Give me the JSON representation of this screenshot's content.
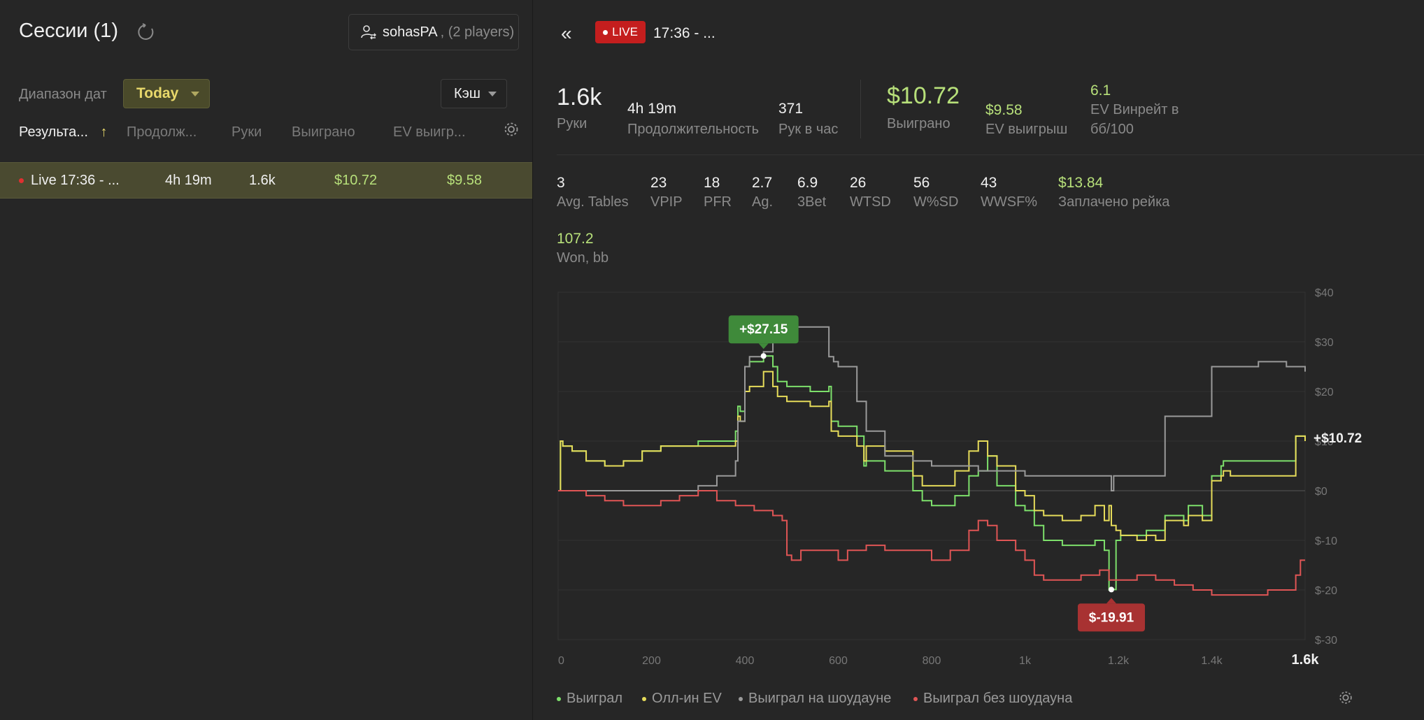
{
  "left": {
    "title": "Сессии (1)",
    "player": "sohasPA",
    "players_count": ", (2 players)",
    "date_label": "Диапазон дат",
    "date_value": "Today",
    "game_type": "Кэш",
    "columns": [
      "Результа...",
      "Продолж...",
      "Руки",
      "Выиграно",
      "EV выигр..."
    ],
    "sort_arrow": "↑",
    "row": {
      "name": "Live 17:36 - ...",
      "duration": "4h 19m",
      "hands": "1.6k",
      "won": "$10.72",
      "ev_won": "$9.58"
    }
  },
  "header": {
    "back": "«",
    "live_label": "LIVE",
    "session_title": "17:36 - ..."
  },
  "stats": {
    "hands_value": "1.6k",
    "hands_label": "Руки",
    "duration_value": "4h 19m",
    "duration_label": "Продолжительность",
    "rate_value": "371",
    "rate_label": "Рук в час",
    "won_value": "$10.72",
    "won_label": "Выиграно",
    "ev_value": "$9.58",
    "ev_label": "EV выигрыш",
    "winrate_value": "6.1",
    "winrate_label_1": "EV Винрейт в",
    "winrate_label_2": "бб/100"
  },
  "stats2": [
    {
      "value": "3",
      "label": "Avg. Tables"
    },
    {
      "value": "23",
      "label": "VPIP"
    },
    {
      "value": "18",
      "label": "PFR"
    },
    {
      "value": "2.7",
      "label": "Ag."
    },
    {
      "value": "6.9",
      "label": "3Bet"
    },
    {
      "value": "26",
      "label": "WTSD"
    },
    {
      "value": "56",
      "label": "W%SD"
    },
    {
      "value": "43",
      "label": "WWSF%"
    },
    {
      "value": "$13.84",
      "label": "Заплачено рейка"
    }
  ],
  "stats3": {
    "value": "107.2",
    "label": "Won, bb"
  },
  "colors": {
    "won": "#7de06b",
    "allin_ev": "#e6dc5a",
    "showdown": "#9a9a9a",
    "non_showdown": "#e05555",
    "accent": "#b7e07a",
    "live": "#c41e1e"
  },
  "chart_data": {
    "type": "line",
    "x_ticks": [
      "0",
      "200",
      "400",
      "600",
      "800",
      "1k",
      "1.2k",
      "1.4k",
      "1.6k"
    ],
    "y_ticks": [
      "$40",
      "$30",
      "$20",
      "$10",
      "$0",
      "$-10",
      "$-20",
      "$-30"
    ],
    "xlim": [
      0,
      1600
    ],
    "ylim": [
      -30,
      40
    ],
    "max_label": "+$27.15",
    "min_label": "$-19.91",
    "end_label": "+$10.72",
    "series": [
      {
        "name": "Выиграл",
        "color": "#7de06b",
        "x": [
          0,
          5,
          10,
          30,
          60,
          100,
          140,
          180,
          220,
          260,
          300,
          340,
          380,
          385,
          390,
          400,
          410,
          440,
          460,
          470,
          490,
          520,
          540,
          580,
          585,
          600,
          640,
          655,
          660,
          700,
          760,
          780,
          800,
          850,
          880,
          900,
          920,
          940,
          980,
          1000,
          1020,
          1040,
          1080,
          1120,
          1150,
          1170,
          1180,
          1185,
          1195,
          1205,
          1240,
          1260,
          1280,
          1300,
          1340,
          1350,
          1380,
          1400,
          1420,
          1425,
          1440,
          1580,
          1600
        ],
        "y": [
          0,
          10,
          9,
          8,
          6,
          5,
          6,
          8,
          9,
          9,
          10,
          10,
          12,
          17,
          16,
          25,
          26,
          27.15,
          25,
          22,
          21,
          21,
          20,
          21,
          14,
          13,
          11,
          5,
          6,
          4,
          0,
          -2,
          -3,
          -1,
          3,
          4,
          7,
          1,
          -3,
          -4,
          -7,
          -10,
          -11,
          -11,
          -10,
          -12,
          -20,
          -19.91,
          -10,
          -9,
          -9,
          -8,
          -8,
          -5,
          -6,
          -3,
          -5,
          3,
          5,
          6,
          6,
          11,
          10.72
        ]
      },
      {
        "name": "Олл-ин EV",
        "color": "#e6dc5a",
        "x": [
          0,
          5,
          10,
          30,
          60,
          100,
          140,
          180,
          220,
          260,
          300,
          340,
          380,
          385,
          390,
          400,
          410,
          440,
          460,
          470,
          490,
          520,
          540,
          580,
          585,
          600,
          640,
          655,
          660,
          700,
          760,
          780,
          800,
          850,
          880,
          900,
          920,
          940,
          980,
          1000,
          1020,
          1040,
          1080,
          1120,
          1150,
          1170,
          1180,
          1185,
          1195,
          1205,
          1240,
          1260,
          1280,
          1300,
          1340,
          1350,
          1380,
          1400,
          1420,
          1425,
          1440,
          1580,
          1600
        ],
        "y": [
          0,
          10,
          9,
          8,
          6,
          5,
          6,
          8,
          9,
          9,
          9,
          9,
          10,
          15,
          14,
          20,
          21,
          24,
          21,
          19,
          18,
          18,
          17,
          18,
          12,
          11,
          9,
          6,
          9,
          8,
          3,
          1,
          1,
          4,
          8,
          10,
          7,
          5,
          0,
          -1,
          -4,
          -5,
          -6,
          -5,
          -3,
          -6,
          -3,
          -7,
          -8,
          -9,
          -10,
          -9,
          -10,
          -6,
          -7,
          -5,
          -6,
          2,
          3,
          4,
          3,
          11,
          10
        ]
      },
      {
        "name": "Выиграл на шоудауне",
        "color": "#9a9a9a",
        "x": [
          0,
          100,
          200,
          300,
          340,
          380,
          385,
          400,
          410,
          430,
          440,
          460,
          480,
          520,
          560,
          580,
          590,
          600,
          640,
          660,
          700,
          760,
          800,
          900,
          1000,
          1080,
          1120,
          1180,
          1185,
          1190,
          1200,
          1240,
          1280,
          1300,
          1380,
          1400,
          1450,
          1500,
          1560,
          1600
        ],
        "y": [
          0,
          0,
          0,
          1,
          3,
          6,
          14,
          25,
          27,
          27,
          28,
          30,
          33,
          33,
          33,
          27,
          26,
          25,
          18,
          12,
          7,
          6,
          5,
          4,
          3,
          3,
          3,
          3,
          0,
          3,
          3,
          3,
          3,
          15,
          15,
          25,
          25,
          26,
          25,
          24
        ]
      },
      {
        "name": "Выиграл без шоудауна",
        "color": "#e05555",
        "x": [
          0,
          20,
          60,
          100,
          140,
          180,
          220,
          260,
          300,
          340,
          380,
          420,
          460,
          480,
          490,
          500,
          520,
          560,
          600,
          620,
          660,
          700,
          760,
          800,
          840,
          880,
          900,
          920,
          940,
          980,
          1000,
          1020,
          1040,
          1080,
          1120,
          1160,
          1180,
          1200,
          1240,
          1280,
          1320,
          1360,
          1380,
          1400,
          1440,
          1480,
          1520,
          1560,
          1580,
          1590,
          1600
        ],
        "y": [
          0,
          0,
          -1,
          -2,
          -3,
          -3,
          -2,
          -1,
          0,
          -2,
          -3,
          -4,
          -5,
          -6,
          -13,
          -14,
          -12,
          -12,
          -14,
          -12,
          -11,
          -12,
          -12,
          -14,
          -12,
          -8,
          -6,
          -7,
          -10,
          -12,
          -14,
          -17,
          -18,
          -18,
          -17,
          -16,
          -18,
          -18,
          -17,
          -18,
          -19,
          -20,
          -20,
          -21,
          -21,
          -21,
          -20,
          -20,
          -17,
          -14,
          -14
        ]
      }
    ]
  },
  "legend": [
    "Выиграл",
    "Олл-ин EV",
    "Выиграл на шоудауне",
    "Выиграл без шоудауна"
  ]
}
